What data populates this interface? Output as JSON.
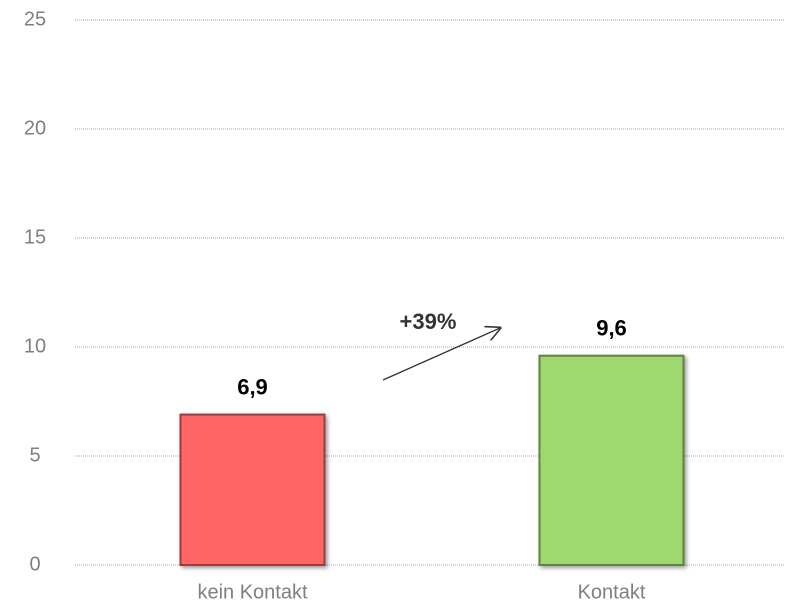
{
  "chart_data": {
    "type": "bar",
    "categories": [
      "kein Kontakt",
      "Kontakt"
    ],
    "values": [
      6.9,
      9.6
    ],
    "value_labels": [
      "6,9",
      "9,6"
    ],
    "colors": [
      "#ff6666",
      "#a0d870"
    ],
    "annotation": "+39%",
    "ylim": [
      0,
      25
    ],
    "yticks": [
      0,
      5,
      10,
      15,
      20,
      25
    ],
    "grid": true
  }
}
